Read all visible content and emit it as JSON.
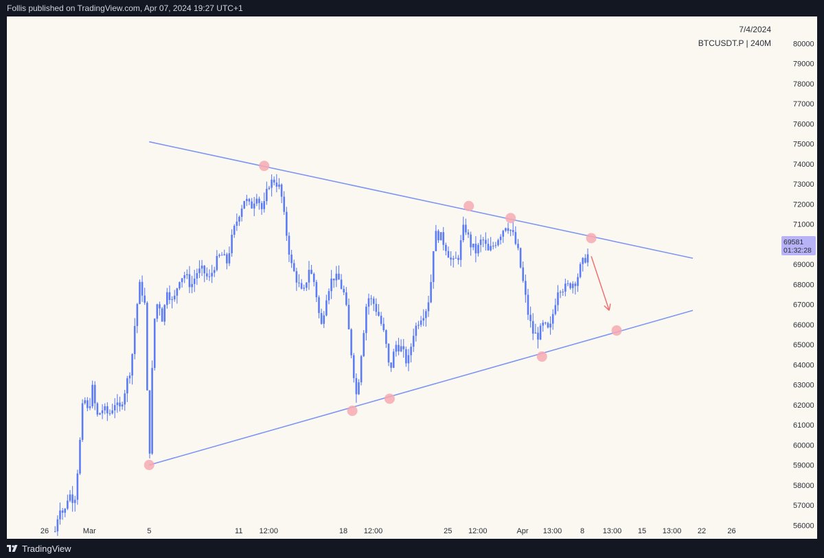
{
  "header": {
    "published_text": "Follis published on TradingView.com, Apr 07, 2024 19:27 UTC+1"
  },
  "footer": {
    "brand": "TradingView",
    "logo_icon": "tradingview-logo-icon"
  },
  "chart_info": {
    "date": "7/4/2024",
    "symbol_interval": "BTCUSDT.P | 240M"
  },
  "price_badge": {
    "price": "69581",
    "countdown": "01:32:28",
    "color": "#b7b3f6"
  },
  "colors": {
    "candles": "#5b7cf5",
    "trendline": "#7d96f2",
    "pivot_marker": "#f6a9b3",
    "arrow": "#f07070",
    "axis_text": "#2a2e39"
  },
  "chart_data": {
    "type": "candlestick",
    "symbol": "BTCUSDT.P",
    "interval": "240M",
    "ylim": [
      55500,
      80500
    ],
    "y_ticks": [
      "80000",
      "79000",
      "78000",
      "77000",
      "76000",
      "75000",
      "74000",
      "73000",
      "72000",
      "71000",
      "70000",
      "69000",
      "68000",
      "67000",
      "66000",
      "65000",
      "64000",
      "63000",
      "62000",
      "61000",
      "60000",
      "59000",
      "58000",
      "57000",
      "56000"
    ],
    "x_ticks": [
      {
        "label": "26",
        "day": 0
      },
      {
        "label": "Mar",
        "day": 3
      },
      {
        "label": "5",
        "day": 7
      },
      {
        "label": "11",
        "day": 13
      },
      {
        "label": "12:00",
        "day": 15
      },
      {
        "label": "18",
        "day": 20
      },
      {
        "label": "12:00",
        "day": 22
      },
      {
        "label": "25",
        "day": 27
      },
      {
        "label": "12:00",
        "day": 29
      },
      {
        "label": "Apr",
        "day": 32
      },
      {
        "label": "13:00",
        "day": 34
      },
      {
        "label": "8",
        "day": 36
      },
      {
        "label": "13:00",
        "day": 38
      },
      {
        "label": "15",
        "day": 40
      },
      {
        "label": "13:00",
        "day": 42
      },
      {
        "label": "22",
        "day": 44
      },
      {
        "label": "26",
        "day": 46
      }
    ],
    "price_path": [
      [
        0.7,
        55700
      ],
      [
        1.0,
        57000
      ],
      [
        1.3,
        56500
      ],
      [
        1.6,
        57600
      ],
      [
        2.0,
        57200
      ],
      [
        2.3,
        59500
      ],
      [
        2.6,
        62500
      ],
      [
        2.9,
        61600
      ],
      [
        3.2,
        62800
      ],
      [
        3.5,
        61400
      ],
      [
        3.9,
        61800
      ],
      [
        4.3,
        61500
      ],
      [
        4.7,
        62100
      ],
      [
        5.0,
        61700
      ],
      [
        5.4,
        62800
      ],
      [
        5.8,
        64000
      ],
      [
        6.1,
        66500
      ],
      [
        6.4,
        68100
      ],
      [
        6.7,
        67000
      ],
      [
        7.0,
        59000
      ],
      [
        7.3,
        66000
      ],
      [
        7.6,
        67300
      ],
      [
        7.9,
        66200
      ],
      [
        8.2,
        67800
      ],
      [
        8.6,
        67000
      ],
      [
        9.0,
        68300
      ],
      [
        9.4,
        68500
      ],
      [
        9.8,
        67900
      ],
      [
        10.2,
        68600
      ],
      [
        10.6,
        68700
      ],
      [
        11.0,
        68200
      ],
      [
        11.4,
        69000
      ],
      [
        11.8,
        69500
      ],
      [
        12.2,
        69100
      ],
      [
        12.6,
        70500
      ],
      [
        13.0,
        71500
      ],
      [
        13.4,
        72300
      ],
      [
        13.8,
        71800
      ],
      [
        14.2,
        72500
      ],
      [
        14.6,
        71600
      ],
      [
        15.0,
        73000
      ],
      [
        15.4,
        73200
      ],
      [
        15.8,
        72700
      ],
      [
        16.1,
        71000
      ],
      [
        16.5,
        69000
      ],
      [
        16.9,
        68200
      ],
      [
        17.3,
        67400
      ],
      [
        17.7,
        68800
      ],
      [
        18.1,
        68000
      ],
      [
        18.5,
        65800
      ],
      [
        18.9,
        67600
      ],
      [
        19.3,
        68400
      ],
      [
        19.7,
        68200
      ],
      [
        20.1,
        67400
      ],
      [
        20.5,
        64800
      ],
      [
        20.9,
        62300
      ],
      [
        21.2,
        64600
      ],
      [
        21.6,
        67400
      ],
      [
        22.0,
        67100
      ],
      [
        22.4,
        66400
      ],
      [
        22.8,
        65300
      ],
      [
        23.1,
        63600
      ],
      [
        23.5,
        65000
      ],
      [
        23.9,
        64800
      ],
      [
        24.3,
        64000
      ],
      [
        24.7,
        65600
      ],
      [
        25.1,
        66300
      ],
      [
        25.5,
        66700
      ],
      [
        25.8,
        67500
      ],
      [
        26.1,
        70500
      ],
      [
        26.5,
        70400
      ],
      [
        26.9,
        69800
      ],
      [
        27.3,
        69000
      ],
      [
        27.7,
        69400
      ],
      [
        28.1,
        71000
      ],
      [
        28.5,
        70000
      ],
      [
        28.9,
        69600
      ],
      [
        29.3,
        70300
      ],
      [
        29.7,
        69600
      ],
      [
        30.1,
        70000
      ],
      [
        30.5,
        70500
      ],
      [
        30.9,
        71000
      ],
      [
        31.3,
        70600
      ],
      [
        31.7,
        69600
      ],
      [
        32.1,
        67800
      ],
      [
        32.4,
        66400
      ],
      [
        32.7,
        65600
      ],
      [
        33.0,
        65400
      ],
      [
        33.4,
        66000
      ],
      [
        33.8,
        65600
      ],
      [
        34.1,
        66800
      ],
      [
        34.4,
        67900
      ],
      [
        34.8,
        67800
      ],
      [
        35.2,
        68000
      ],
      [
        35.6,
        68200
      ],
      [
        35.9,
        68900
      ],
      [
        36.2,
        69300
      ],
      [
        36.5,
        69581
      ]
    ],
    "trendlines": [
      {
        "name": "upper",
        "points": [
          [
            7.0,
            75100
          ],
          [
            43.4,
            69300
          ]
        ]
      },
      {
        "name": "lower",
        "points": [
          [
            7.0,
            59000
          ],
          [
            43.4,
            66700
          ]
        ]
      }
    ],
    "pivot_markers": [
      [
        7.0,
        59000
      ],
      [
        14.7,
        73900
      ],
      [
        20.6,
        61700
      ],
      [
        23.1,
        62300
      ],
      [
        28.4,
        71900
      ],
      [
        31.2,
        71300
      ],
      [
        33.3,
        64400
      ],
      [
        36.6,
        70300
      ],
      [
        38.3,
        65700
      ]
    ],
    "projection_arrow": {
      "from": [
        36.6,
        69400
      ],
      "to": [
        37.8,
        66700
      ]
    }
  }
}
